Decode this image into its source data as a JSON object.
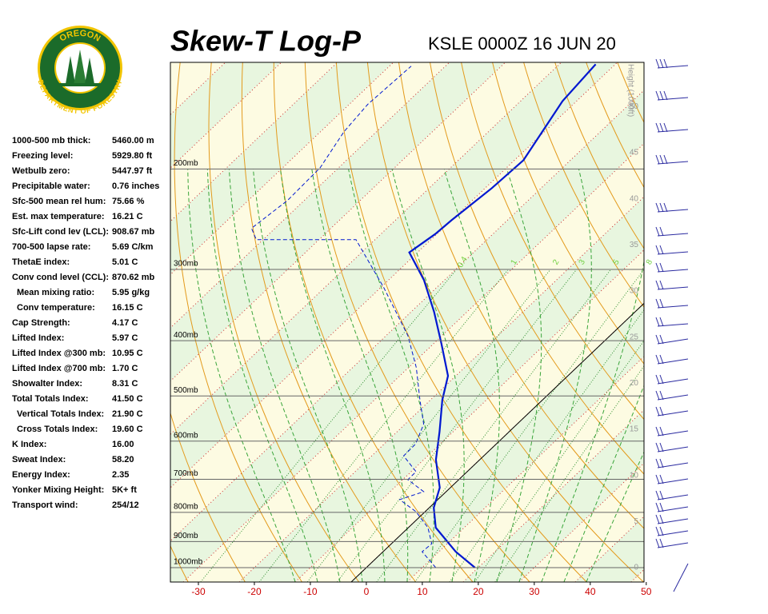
{
  "logo": {
    "top": "OREGON",
    "bottom": "DEPARTMENT OF FORESTRY"
  },
  "stats": {
    "rows": [
      {
        "label": "1000-500 mb thick:",
        "value": "5460.00 m"
      },
      {
        "label": "Freezing level:",
        "value": "5929.80 ft"
      },
      {
        "label": "Wetbulb zero:",
        "value": "5447.97 ft"
      },
      {
        "label": "Precipitable water:",
        "value": "0.76 inches"
      },
      {
        "label": "Sfc-500 mean rel hum:",
        "value": "75.66 %"
      },
      {
        "label": "Est. max temperature:",
        "value": "16.21 C"
      },
      {
        "label": "Sfc-Lift cond lev (LCL):",
        "value": "908.67 mb"
      },
      {
        "label": "700-500 lapse rate:",
        "value": "5.69 C/km"
      },
      {
        "label": "ThetaE index:",
        "value": "5.01 C"
      },
      {
        "label": "Conv cond level (CCL):",
        "value": "870.62 mb"
      },
      {
        "label": "Mean mixing ratio:",
        "value": "5.95 g/kg",
        "indent": true
      },
      {
        "label": "Conv temperature:",
        "value": "16.15 C",
        "indent": true
      },
      {
        "label": "Cap Strength:",
        "value": "4.17 C"
      },
      {
        "label": "Lifted Index:",
        "value": "5.97 C"
      },
      {
        "label": "Lifted Index @300 mb:",
        "value": "10.95 C"
      },
      {
        "label": "Lifted Index @700 mb:",
        "value": "1.70 C"
      },
      {
        "label": "Showalter Index:",
        "value": "8.31 C"
      },
      {
        "label": "Total Totals Index:",
        "value": "41.50 C"
      },
      {
        "label": "Vertical Totals Index:",
        "value": "21.90 C",
        "indent": true
      },
      {
        "label": "Cross Totals Index:",
        "value": "19.60 C",
        "indent": true
      },
      {
        "label": "K Index:",
        "value": "16.00"
      },
      {
        "label": "Sweat Index:",
        "value": "58.20"
      },
      {
        "label": "Energy Index:",
        "value": "2.35"
      },
      {
        "label": "Yonker Mixing Height:",
        "value": "5K+ ft"
      },
      {
        "label": "Transport wind:",
        "value": "254/12"
      }
    ]
  },
  "chart_data": {
    "type": "skewt",
    "title": "Skew-T Log-P",
    "subtitle": "KSLE 0000Z 16 JUN 20",
    "xlim": [
      -35,
      49.6
    ],
    "xticks": [
      -30,
      -20,
      -10,
      0,
      10,
      20,
      30,
      40,
      50
    ],
    "ylim": [
      1060,
      130
    ],
    "log_y": true,
    "yticks": [
      {
        "value": 1000,
        "label": "1000mb"
      },
      {
        "value": 900,
        "label": "900mb"
      },
      {
        "value": 800,
        "label": "800mb"
      },
      {
        "value": 700,
        "label": "700mb"
      },
      {
        "value": 600,
        "label": "600mb"
      },
      {
        "value": 500,
        "label": "500mb"
      },
      {
        "value": 400,
        "label": "400mb"
      },
      {
        "value": 300,
        "label": "300mb"
      },
      {
        "value": 200,
        "label": "200mb"
      }
    ],
    "y2label": "Height (1000ft)",
    "y2lim": [
      -1.56,
      54.8
    ],
    "y2ticks": [
      0,
      5,
      10,
      15,
      20,
      25,
      30,
      35,
      40,
      45,
      50
    ],
    "mixing_ratio_labels": [
      0.4,
      1,
      2,
      3,
      5,
      8
    ],
    "series": [
      {
        "color": "#0018d0",
        "style": "solid",
        "pressure": [
          1000,
          938,
          851,
          785,
          724,
          647,
          578,
          508,
          461,
          405,
          356,
          313,
          280,
          260,
          246,
          216,
          193,
          152,
          131
        ],
        "values": [
          19.4,
          13.0,
          4.9,
          0.8,
          -1.9,
          -7.8,
          -12.4,
          -17.9,
          -21.4,
          -28.6,
          -35.9,
          -43.7,
          -51.5,
          -50.3,
          -50.0,
          -48.8,
          -48.4,
          -52.5,
          -53.5
        ]
      },
      {
        "color": "#0018d0",
        "style": "dashed",
        "pressure": [
          1000,
          938,
          908,
          851,
          798,
          760,
          736,
          701,
          679,
          637,
          607,
          560,
          508,
          446,
          392,
          323,
          280,
          266,
          266,
          254,
          227,
          199,
          172,
          154,
          132
        ],
        "values": [
          12.4,
          7.0,
          7.2,
          3.5,
          -1.6,
          -6.8,
          -4.0,
          -9.1,
          -9.1,
          -14.3,
          -14.4,
          -16.7,
          -21.9,
          -28.6,
          -36.1,
          -49.4,
          -59.7,
          -63.4,
          -81.2,
          -84.2,
          -83.0,
          -83.3,
          -85.8,
          -86.7,
          -86.1
        ]
      }
    ]
  }
}
